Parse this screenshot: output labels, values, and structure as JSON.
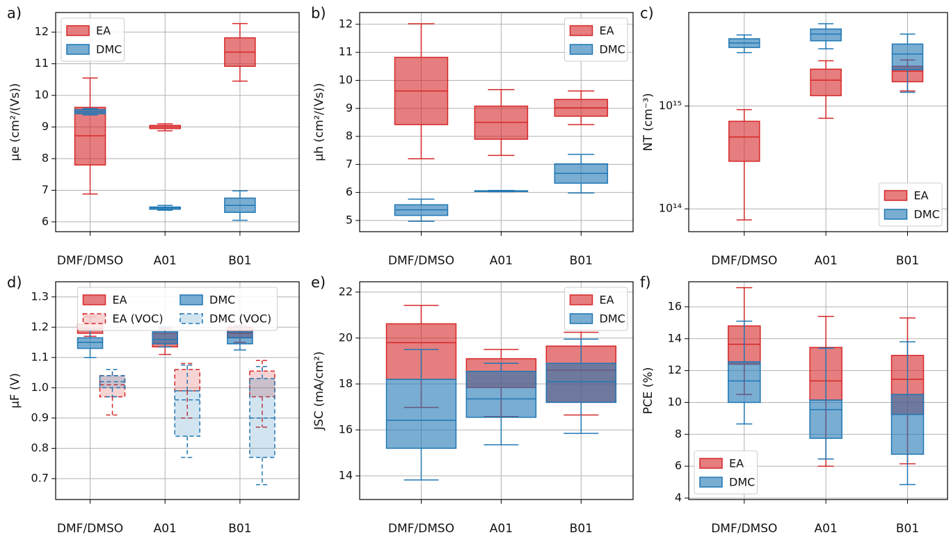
{
  "chart_data": [
    {
      "type": "box",
      "title": "a)",
      "ylabel": "μe (cm²/(Vs))",
      "categories": [
        "DMF/DMSO",
        "A01",
        "B01"
      ],
      "ylim": [
        5.69,
        12.62
      ],
      "yticks": [
        6,
        7,
        8,
        9,
        10,
        11,
        12
      ],
      "grid": true,
      "legend": "upper left",
      "series": [
        {
          "name": "EA",
          "color": "#d62728",
          "values": [
            [
              6.88,
              7.8,
              8.72,
              9.62,
              10.55
            ],
            [
              8.88,
              8.95,
              9.0,
              9.05,
              9.1
            ],
            [
              10.45,
              10.92,
              11.37,
              11.82,
              12.27
            ]
          ]
        },
        {
          "name": "DMC",
          "color": "#1f77b4",
          "values": [
            [
              9.38,
              9.42,
              9.48,
              9.55,
              9.58
            ],
            [
              6.37,
              6.4,
              6.44,
              6.47,
              6.52
            ],
            [
              6.05,
              6.3,
              6.52,
              6.75,
              6.98
            ]
          ]
        }
      ]
    },
    {
      "type": "box",
      "title": "b)",
      "ylabel": "μh (cm²/(Vs))",
      "categories": [
        "DMF/DMSO",
        "A01",
        "B01"
      ],
      "ylim": [
        4.6,
        12.42
      ],
      "yticks": [
        5,
        6,
        7,
        8,
        9,
        10,
        11,
        12
      ],
      "grid": true,
      "legend": "upper right",
      "series": [
        {
          "name": "EA",
          "color": "#d62728",
          "values": [
            [
              7.2,
              8.42,
              9.62,
              10.82,
              12.02
            ],
            [
              7.32,
              7.9,
              8.5,
              9.08,
              9.67
            ],
            [
              8.42,
              8.72,
              9.02,
              9.32,
              9.62
            ]
          ]
        },
        {
          "name": "DMC",
          "color": "#1f77b4",
          "values": [
            [
              4.97,
              5.18,
              5.38,
              5.56,
              5.76
            ],
            [
              6.03,
              6.04,
              6.05,
              6.06,
              6.07
            ],
            [
              5.98,
              6.33,
              6.68,
              7.02,
              7.36
            ]
          ]
        }
      ]
    },
    {
      "type": "box",
      "title": "c)",
      "ylabel": "NT (cm⁻³)",
      "categories": [
        "DMF/DMSO",
        "A01",
        "B01"
      ],
      "ylim": [
        60000000000000.0,
        8100000000000000.0
      ],
      "log": true,
      "yticks": [
        {
          "value": 100000000000000.0,
          "label": "10¹⁴"
        },
        {
          "value": 1000000000000000.0,
          "label": "10¹⁵"
        }
      ],
      "grid": true,
      "legend": "lower right",
      "series": [
        {
          "name": "EA",
          "color": "#d62728",
          "values": [
            [
              78000000000000.0,
              290000000000000.0,
              500000000000000.0,
              710000000000000.0,
              920000000000000.0
            ],
            [
              760000000000000.0,
              1260000000000000.0,
              1780000000000000.0,
              2280000000000000.0,
              2750000000000000.0
            ],
            [
              1400000000000000.0,
              1720000000000000.0,
              2180000000000000.0,
              2430000000000000.0,
              2800000000000000.0
            ]
          ]
        },
        {
          "name": "DMC",
          "color": "#1f77b4",
          "values": [
            [
              3300000000000000.0,
              3700000000000000.0,
              4100000000000000.0,
              4500000000000000.0,
              4900000000000000.0
            ],
            [
              3600000000000000.0,
              4300000000000000.0,
              5000000000000000.0,
              5600000000000000.0,
              6300000000000000.0
            ],
            [
              1360000000000000.0,
              2250000000000000.0,
              3200000000000000.0,
              4000000000000000.0,
              5000000000000000.0
            ]
          ]
        }
      ]
    },
    {
      "type": "box",
      "title": "d)",
      "ylabel": "μF (V)",
      "categories": [
        "DMF/DMSO",
        "A01",
        "B01"
      ],
      "ylim": [
        0.631,
        1.35
      ],
      "yticks": [
        {
          "value": 0.7,
          "label": "0.7"
        },
        {
          "value": 0.8,
          "label": "0.8"
        },
        {
          "value": 0.9,
          "label": "0.9"
        },
        {
          "value": 1.0,
          "label": "1.0"
        },
        {
          "value": 1.1,
          "label": "1.1"
        },
        {
          "value": 1.2,
          "label": "1.2"
        },
        {
          "value": 1.3,
          "label": "1.3"
        }
      ],
      "grid": true,
      "legend": "upper center",
      "legend_ncol": 2,
      "series": [
        {
          "name": "EA",
          "color": "#d62728",
          "values": [
            [
              1.17,
              1.18,
              1.195,
              1.21,
              1.235
            ],
            [
              1.11,
              1.135,
              1.16,
              1.18,
              1.195
            ],
            [
              1.15,
              1.165,
              1.18,
              1.2,
              1.205
            ]
          ]
        },
        {
          "name": "DMC",
          "color": "#1f77b4",
          "values": [
            [
              1.1,
              1.13,
              1.15,
              1.165,
              1.19
            ],
            [
              1.135,
              1.145,
              1.16,
              1.185,
              1.2
            ],
            [
              1.125,
              1.145,
              1.165,
              1.185,
              1.2
            ]
          ]
        },
        {
          "name": "EA (VOC)",
          "color": "#d62728",
          "linestyle": "dashed",
          "values": [
            [
              0.91,
              0.97,
              1.01,
              1.04,
              1.06
            ],
            [
              0.9,
              0.99,
              0.99,
              1.06,
              1.08
            ],
            [
              0.87,
              0.97,
              1.03,
              1.055,
              1.09
            ]
          ]
        },
        {
          "name": "DMC (VOC)",
          "color": "#1f77b4",
          "linestyle": "dashed",
          "values": [
            [
              0.97,
              1.0,
              1.02,
              1.04,
              1.06
            ],
            [
              0.77,
              0.84,
              0.96,
              0.99,
              1.075
            ],
            [
              0.68,
              0.77,
              0.9,
              1.03,
              1.07
            ]
          ]
        }
      ]
    },
    {
      "type": "box",
      "title": "e)",
      "ylabel": "JSC (mA/cm²)",
      "categories": [
        "DMF/DMSO",
        "A01",
        "B01"
      ],
      "ylim": [
        12.97,
        22.45
      ],
      "yticks": [
        14,
        16,
        18,
        20,
        22
      ],
      "grid": true,
      "legend": "upper right",
      "series": [
        {
          "name": "EA",
          "color": "#d62728",
          "values": [
            [
              16.98,
              18.2,
              19.8,
              20.62,
              21.42
            ],
            [
              16.58,
              17.85,
              18.55,
              19.1,
              19.5
            ],
            [
              16.65,
              17.2,
              18.6,
              19.65,
              20.25
            ]
          ]
        },
        {
          "name": "DMC",
          "color": "#1f77b4",
          "values": [
            [
              13.82,
              15.2,
              16.42,
              18.2,
              19.5
            ],
            [
              15.35,
              16.55,
              17.35,
              18.55,
              18.9
            ],
            [
              15.85,
              17.2,
              18.1,
              18.9,
              19.95
            ]
          ]
        }
      ]
    },
    {
      "type": "box",
      "title": "f)",
      "ylabel": "PCE (%)",
      "categories": [
        "DMF/DMSO",
        "A01",
        "B01"
      ],
      "ylim": [
        3.91,
        17.57
      ],
      "yticks": [
        4,
        6,
        8,
        10,
        12,
        14,
        16
      ],
      "grid": true,
      "legend": "lower left",
      "series": [
        {
          "name": "EA",
          "color": "#d62728",
          "values": [
            [
              10.5,
              12.4,
              13.65,
              14.8,
              17.2
            ],
            [
              6.0,
              10.15,
              11.35,
              13.45,
              15.4
            ],
            [
              6.15,
              9.25,
              11.45,
              12.95,
              15.3
            ]
          ]
        },
        {
          "name": "DMC",
          "color": "#1f77b4",
          "values": [
            [
              8.65,
              10.0,
              11.35,
              12.55,
              15.1
            ],
            [
              6.45,
              7.75,
              9.55,
              10.15,
              13.4
            ],
            [
              4.85,
              6.75,
              9.25,
              10.5,
              13.8
            ]
          ]
        }
      ]
    }
  ]
}
